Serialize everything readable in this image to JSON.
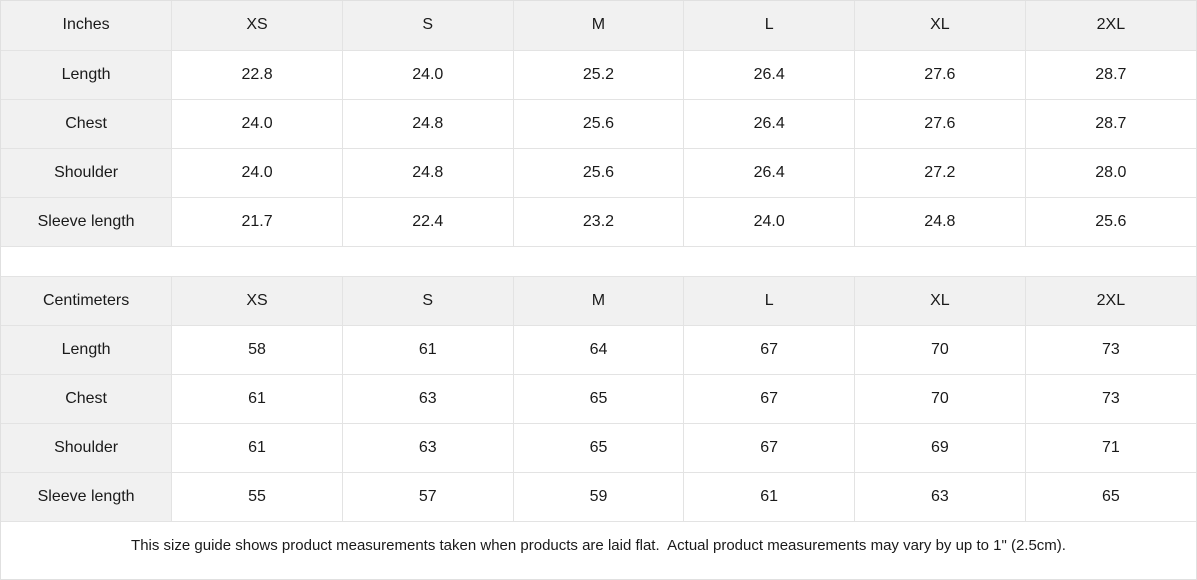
{
  "colors": {
    "header_background": "#f1f1f1",
    "label_column_background": "#f1f1f1",
    "cell_background": "#ffffff",
    "border": "#e3e3e3",
    "text": "#1a1a1a"
  },
  "inches": {
    "unit": "Inches",
    "sizes": [
      "XS",
      "S",
      "M",
      "L",
      "XL",
      "2XL"
    ],
    "rows": [
      {
        "label": "Length",
        "values": [
          "22.8",
          "24.0",
          "25.2",
          "26.4",
          "27.6",
          "28.7"
        ]
      },
      {
        "label": "Chest",
        "values": [
          "24.0",
          "24.8",
          "25.6",
          "26.4",
          "27.6",
          "28.7"
        ]
      },
      {
        "label": "Shoulder",
        "values": [
          "24.0",
          "24.8",
          "25.6",
          "26.4",
          "27.2",
          "28.0"
        ]
      },
      {
        "label": "Sleeve length",
        "values": [
          "21.7",
          "22.4",
          "23.2",
          "24.0",
          "24.8",
          "25.6"
        ]
      }
    ]
  },
  "centimeters": {
    "unit": "Centimeters",
    "sizes": [
      "XS",
      "S",
      "M",
      "L",
      "XL",
      "2XL"
    ],
    "rows": [
      {
        "label": "Length",
        "values": [
          "58",
          "61",
          "64",
          "67",
          "70",
          "73"
        ]
      },
      {
        "label": "Chest",
        "values": [
          "61",
          "63",
          "65",
          "67",
          "70",
          "73"
        ]
      },
      {
        "label": "Shoulder",
        "values": [
          "61",
          "63",
          "65",
          "67",
          "69",
          "71"
        ]
      },
      {
        "label": "Sleeve length",
        "values": [
          "55",
          "57",
          "59",
          "61",
          "63",
          "65"
        ]
      }
    ]
  },
  "footer": {
    "note": "This size guide shows product measurements taken when products are laid flat.  Actual product measurements may vary by up to 1\" (2.5cm)."
  }
}
